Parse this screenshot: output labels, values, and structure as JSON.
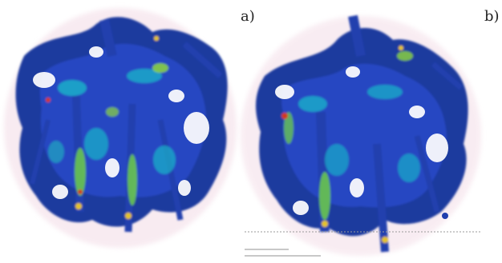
{
  "figure": {
    "panels": [
      {
        "label": "a)",
        "description_icon": "bone-scaffold-stress-map-a"
      },
      {
        "label": "b)",
        "description_icon": "bone-scaffold-stress-map-b"
      }
    ],
    "colors": {
      "low": "#1a2d8a",
      "mid_low": "#2a5bd6",
      "mid": "#19b4c8",
      "mid_high": "#7fd34a",
      "high": "#e6d22a",
      "peak": "#d23a1e",
      "halo": "#e9c6d8"
    }
  }
}
